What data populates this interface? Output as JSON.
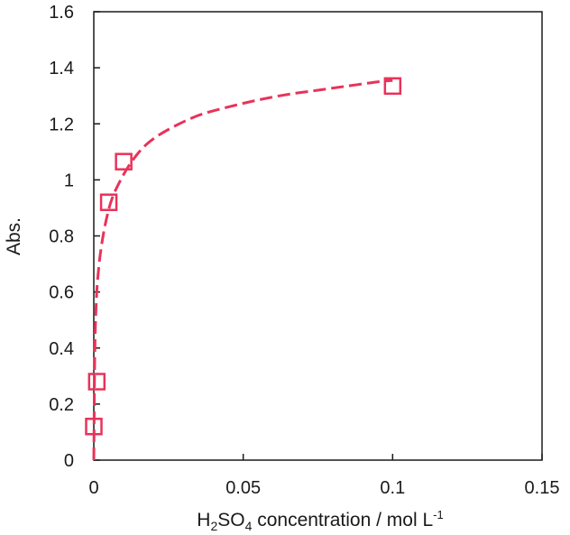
{
  "chart_data": {
    "type": "scatter",
    "title": "",
    "xlabel": {
      "prefix": "H",
      "sub1": "2",
      "mid": "SO",
      "sub2": "4",
      "suffix": " concentration / mol L",
      "sup": "-1"
    },
    "ylabel": "Abs.",
    "xlim": [
      0,
      0.15
    ],
    "ylim": [
      0,
      1.6
    ],
    "xticks": [
      {
        "value": 0,
        "label": "0"
      },
      {
        "value": 0.05,
        "label": "0.05"
      },
      {
        "value": 0.1,
        "label": "0.1"
      },
      {
        "value": 0.15,
        "label": "0.15"
      }
    ],
    "yticks": [
      {
        "value": 0,
        "label": "0"
      },
      {
        "value": 0.2,
        "label": "0.2"
      },
      {
        "value": 0.4,
        "label": "0.4"
      },
      {
        "value": 0.6,
        "label": "0.6"
      },
      {
        "value": 0.8,
        "label": "0.8"
      },
      {
        "value": 1.0,
        "label": "1"
      },
      {
        "value": 1.2,
        "label": "1.2"
      },
      {
        "value": 1.4,
        "label": "1.4"
      },
      {
        "value": 1.6,
        "label": "1.6"
      }
    ],
    "series": [
      {
        "marker": "open-square",
        "color": "#e8335a",
        "x": [
          0,
          0.001,
          0.005,
          0.01,
          0.1
        ],
        "y": [
          0.12,
          0.28,
          0.92,
          1.065,
          1.335
        ]
      }
    ],
    "fit": {
      "style": "dashed",
      "color": "#e8335a",
      "x": [
        0,
        0.0003,
        0.0008,
        0.0015,
        0.0025,
        0.004,
        0.006,
        0.009,
        0.013,
        0.018,
        0.025,
        0.035,
        0.045,
        0.055,
        0.065,
        0.075,
        0.085,
        0.095,
        0.1
      ],
      "y": [
        0,
        0.36,
        0.56,
        0.67,
        0.76,
        0.85,
        0.93,
        1.0,
        1.07,
        1.13,
        1.18,
        1.23,
        1.26,
        1.285,
        1.305,
        1.32,
        1.335,
        1.35,
        1.355
      ]
    },
    "grid": false,
    "legend": "none"
  }
}
